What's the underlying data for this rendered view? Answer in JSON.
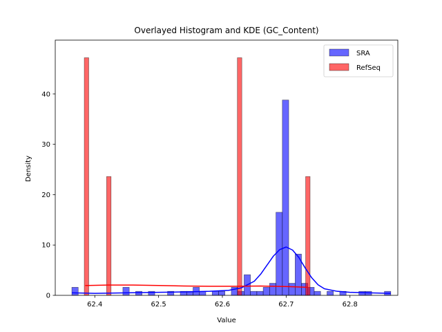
{
  "chart_data": {
    "type": "bar",
    "title": "Overlayed Histogram and KDE (GC_Content)",
    "xlabel": "Value",
    "ylabel": "Density",
    "xlim": [
      62.338,
      62.875
    ],
    "ylim": [
      0,
      50.7
    ],
    "xticks": [
      62.4,
      62.5,
      62.6,
      62.7,
      62.8
    ],
    "xtick_labels": [
      "62.4",
      "62.5",
      "62.6",
      "62.7",
      "62.8"
    ],
    "yticks": [
      0,
      10,
      20,
      30,
      40
    ],
    "ytick_labels": [
      "0",
      "10",
      "20",
      "30",
      "40"
    ],
    "grid": false,
    "legend_position": "top-right",
    "series": [
      {
        "name": "SRA",
        "color": "#0000ff",
        "fill_opacity": 0.6,
        "bin_width": 0.01,
        "bins": [
          {
            "x0": 62.364,
            "density": 1.6
          },
          {
            "x0": 62.444,
            "density": 1.6
          },
          {
            "x0": 62.464,
            "density": 0.8
          },
          {
            "x0": 62.484,
            "density": 0.8
          },
          {
            "x0": 62.514,
            "density": 0.8
          },
          {
            "x0": 62.534,
            "density": 0.8
          },
          {
            "x0": 62.544,
            "density": 0.8
          },
          {
            "x0": 62.554,
            "density": 1.6
          },
          {
            "x0": 62.564,
            "density": 0.8
          },
          {
            "x0": 62.584,
            "density": 0.8
          },
          {
            "x0": 62.594,
            "density": 0.8
          },
          {
            "x0": 62.614,
            "density": 1.6
          },
          {
            "x0": 62.624,
            "density": 0.8
          },
          {
            "x0": 62.634,
            "density": 4.1
          },
          {
            "x0": 62.644,
            "density": 0.8
          },
          {
            "x0": 62.654,
            "density": 0.8
          },
          {
            "x0": 62.664,
            "density": 1.6
          },
          {
            "x0": 62.674,
            "density": 2.4
          },
          {
            "x0": 62.684,
            "density": 16.5
          },
          {
            "x0": 62.694,
            "density": 38.8
          },
          {
            "x0": 62.704,
            "density": 2.4
          },
          {
            "x0": 62.714,
            "density": 8.2
          },
          {
            "x0": 62.724,
            "density": 2.4
          },
          {
            "x0": 62.734,
            "density": 1.6
          },
          {
            "x0": 62.744,
            "density": 0.8
          },
          {
            "x0": 62.764,
            "density": 0.8
          },
          {
            "x0": 62.784,
            "density": 0.8
          },
          {
            "x0": 62.814,
            "density": 0.8
          },
          {
            "x0": 62.824,
            "density": 0.8
          },
          {
            "x0": 62.854,
            "density": 0.8
          }
        ],
        "kde": {
          "x": [
            62.364,
            62.4,
            62.45,
            62.5,
            62.55,
            62.58,
            62.61,
            62.63,
            62.65,
            62.66,
            62.67,
            62.68,
            62.69,
            62.7,
            62.71,
            62.72,
            62.73,
            62.74,
            62.75,
            62.76,
            62.78,
            62.8,
            62.83,
            62.864
          ],
          "y": [
            0.5,
            0.4,
            0.5,
            0.6,
            0.7,
            0.8,
            1.0,
            1.5,
            2.8,
            4.2,
            6.0,
            7.8,
            9.1,
            9.6,
            9.0,
            7.5,
            5.4,
            3.5,
            2.1,
            1.3,
            0.8,
            0.6,
            0.5,
            0.4
          ]
        }
      },
      {
        "name": "RefSeq",
        "color": "#ff0000",
        "fill_opacity": 0.6,
        "bin_width": 0.007,
        "bins": [
          {
            "x0": 62.3835,
            "density": 47.2
          },
          {
            "x0": 62.4185,
            "density": 23.6
          },
          {
            "x0": 62.6235,
            "density": 47.2
          },
          {
            "x0": 62.7305,
            "density": 23.6
          }
        ],
        "kde": {
          "x": [
            62.385,
            62.42,
            62.46,
            62.5,
            62.54,
            62.58,
            62.62,
            62.66,
            62.7,
            62.734
          ],
          "y": [
            1.95,
            2.05,
            2.05,
            1.95,
            1.85,
            1.8,
            1.8,
            1.85,
            1.75,
            1.6
          ]
        }
      }
    ]
  }
}
